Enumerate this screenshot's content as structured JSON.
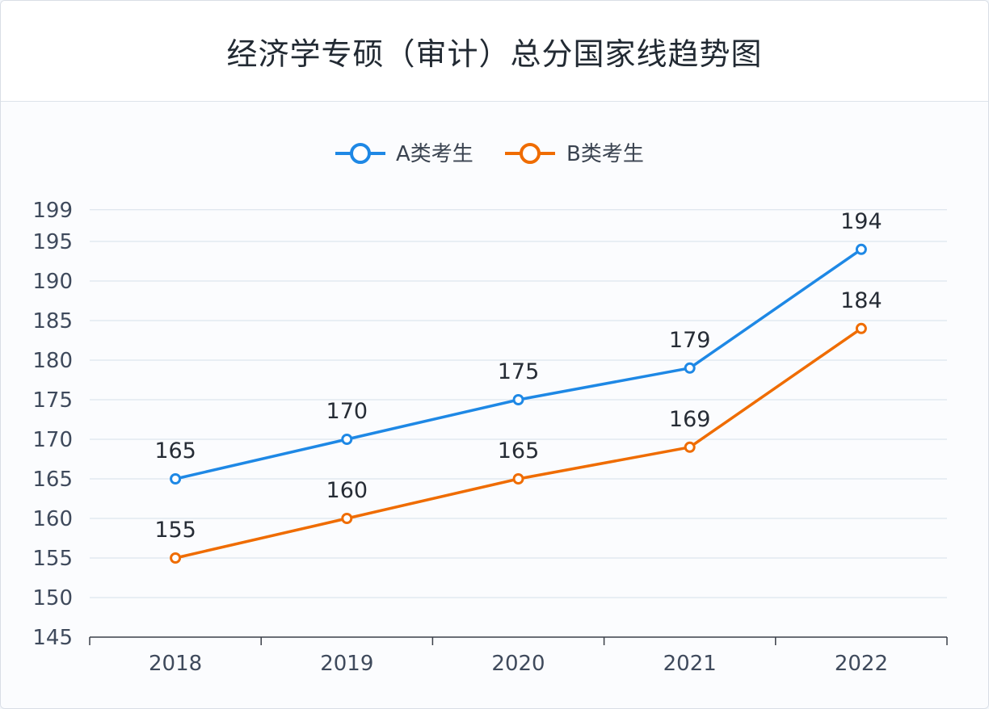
{
  "title": "经济学专硕（审计）总分国家线趋势图",
  "chart_data": {
    "type": "line",
    "title": "经济学专硕（审计）总分国家线趋势图",
    "x": [
      "2018",
      "2019",
      "2020",
      "2021",
      "2022"
    ],
    "ylim": [
      145,
      199
    ],
    "yticks": [
      199,
      195,
      190,
      185,
      180,
      175,
      170,
      165,
      160,
      155,
      150,
      145
    ],
    "grid": true,
    "legend_position": "top-center",
    "series": [
      {
        "name": "A类考生",
        "color": "#1e88e5",
        "values": [
          165,
          170,
          175,
          179,
          194
        ]
      },
      {
        "name": "B类考生",
        "color": "#ef6c00",
        "values": [
          155,
          160,
          165,
          169,
          184
        ]
      }
    ]
  }
}
